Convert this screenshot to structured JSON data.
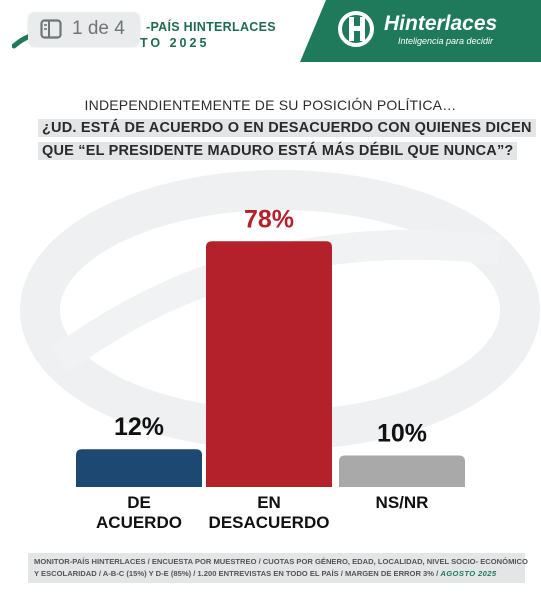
{
  "header": {
    "page_indicator": "1 de 4",
    "report_title": "-PAÍS HINTERLACES",
    "report_date": "TO 2025",
    "logo_name": "Hinterlaces",
    "logo_tagline": "Inteligencia para decidir"
  },
  "question": {
    "line1": "INDEPENDIENTEMENTE DE SU POSICIÓN POLÍTICA…",
    "line2": "¿UD. ESTÁ DE ACUERDO O EN DESACUERDO CON QUIENES DICEN",
    "line3": "QUE “EL PRESIDENTE MADURO ESTÁ MÁS DÉBIL QUE NUNCA”?"
  },
  "colors": {
    "brand_green": "#1e7a5a",
    "de_acuerdo": "#1c4871",
    "en_desacuerdo": "#b5212b",
    "ns_nr": "#a9a9a9"
  },
  "chart_data": {
    "type": "bar",
    "categories": [
      [
        "DE",
        "ACUERDO"
      ],
      [
        "EN",
        "DESACUERDO"
      ],
      [
        "NS/NR"
      ]
    ],
    "values": [
      12,
      78,
      10
    ],
    "data_labels": [
      "12%",
      "78%",
      "10%"
    ],
    "label_colors": [
      "#111111",
      "#b5212b",
      "#111111"
    ],
    "bar_colors": [
      "#1c4871",
      "#b5212b",
      "#a9a9a9"
    ],
    "ylim": [
      0,
      80
    ],
    "grid": false,
    "legend": "none"
  },
  "footer": {
    "text_line1": "MONITOR-PAÍS HINTERLACES / ENCUESTA POR MUESTREO / CUOTAS POR GÉNERO, EDAD, LOCALIDAD,  NIVEL SOCIO- ECONÓMICO",
    "text_line2": "Y ESCOLARIDAD / A-B-C (15%) Y D-E (85%) / 1.200 ENTREVISTAS EN TODO EL PAÍS  / MARGEN DE ERROR 3% /",
    "date": "AGOSTO 2025"
  }
}
